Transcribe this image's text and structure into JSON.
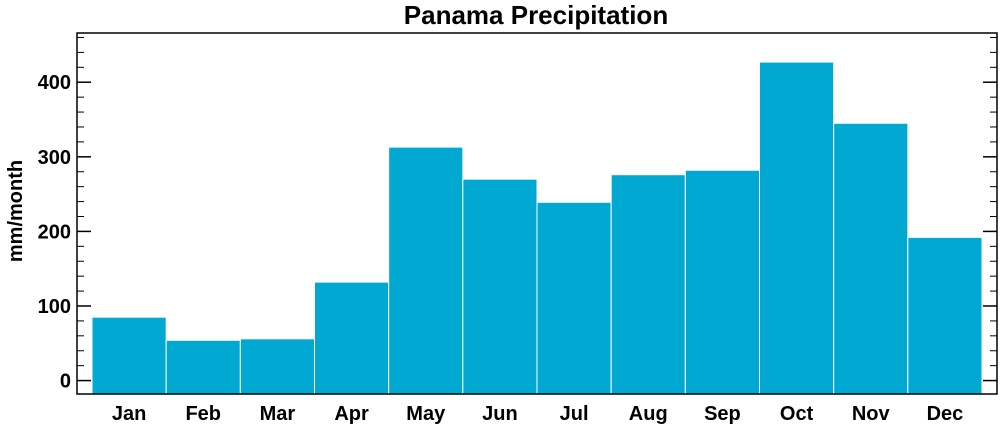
{
  "chart_data": {
    "type": "bar",
    "title": "Panama Precipitation",
    "xlabel": "",
    "ylabel": "mm/month",
    "categories": [
      "Jan",
      "Feb",
      "Mar",
      "Apr",
      "May",
      "Jun",
      "Jul",
      "Aug",
      "Sep",
      "Oct",
      "Nov",
      "Dec"
    ],
    "values": [
      85,
      54,
      56,
      132,
      313,
      270,
      239,
      276,
      282,
      427,
      345,
      192
    ],
    "ylim": [
      -18,
      466
    ],
    "yticks": [
      0,
      100,
      200,
      300,
      400
    ],
    "grid": false,
    "legend": "none",
    "bar_color": "#00a8d2",
    "bar_edge_color": "#ffffff"
  }
}
